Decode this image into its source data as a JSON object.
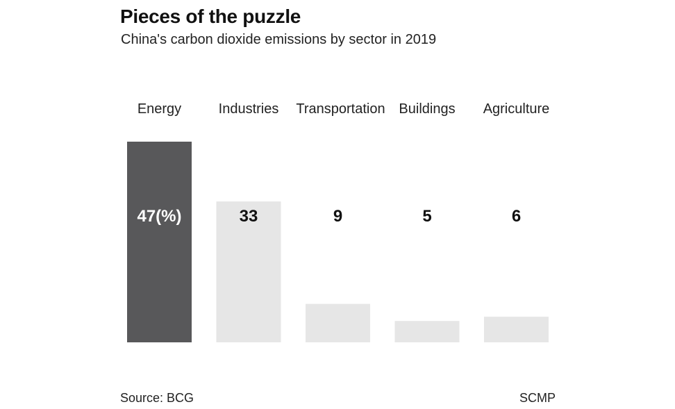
{
  "title": "Pieces of the puzzle",
  "subtitle": "China's carbon dioxide emissions by sector in 2019",
  "source": "Source: BCG",
  "credit": "SCMP",
  "chart_data": {
    "type": "bar",
    "categories": [
      "Energy",
      "Industries",
      "Transportation",
      "Buildings",
      "Agriculture"
    ],
    "values": [
      47,
      33,
      9,
      5,
      6
    ],
    "value_labels": [
      "47(%)",
      "33",
      "9",
      "5",
      "6"
    ],
    "highlight_color": "#58585a",
    "bar_color": "#e6e6e6",
    "highlight_label_color": "#ffffff",
    "label_color": "#111111",
    "ylim": [
      0,
      47
    ],
    "grid": false
  }
}
